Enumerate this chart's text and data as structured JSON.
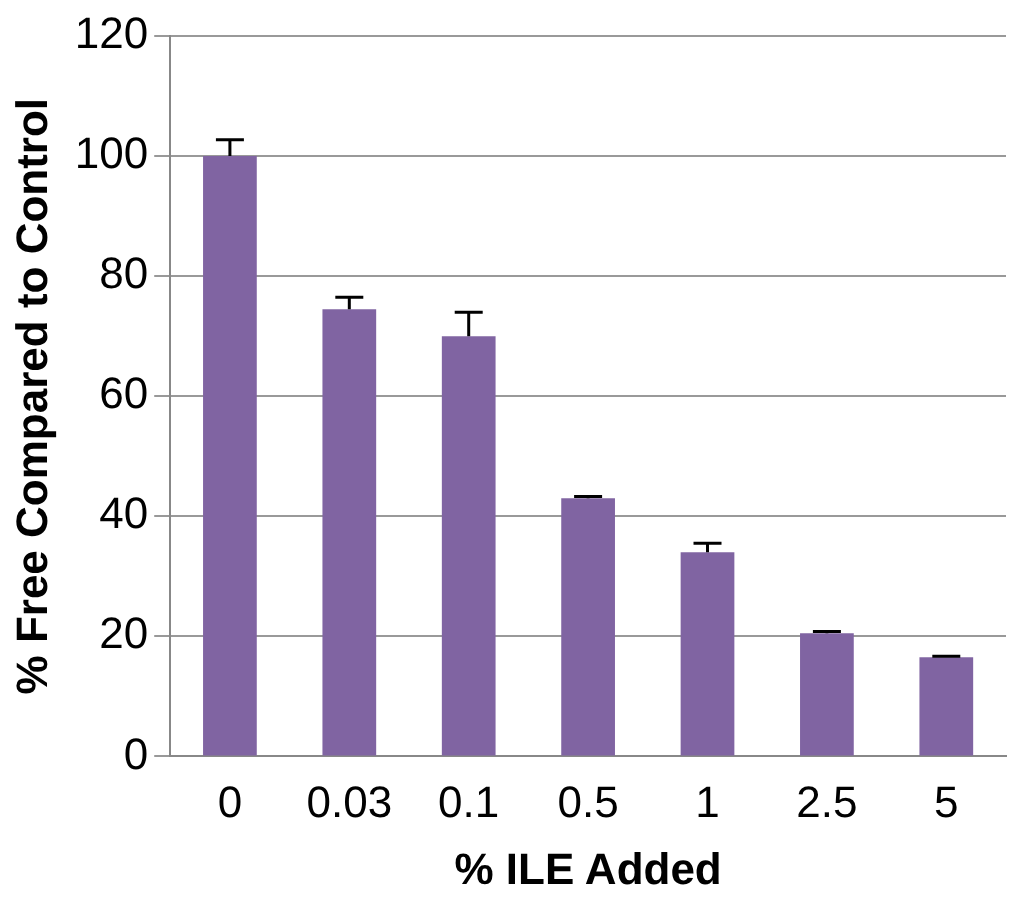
{
  "chart_data": {
    "type": "bar",
    "xlabel": "% ILE Added",
    "ylabel": "% Free Compared to Control",
    "categories": [
      "0",
      "0.03",
      "0.1",
      "0.5",
      "1",
      "2.5",
      "5"
    ],
    "values": [
      100,
      74.5,
      70,
      43,
      34,
      20.5,
      16.5
    ],
    "errors": [
      [
        100,
        102.7
      ],
      [
        74.5,
        76.5
      ],
      [
        70,
        74
      ],
      [
        43,
        43.3
      ],
      [
        34,
        35.5
      ],
      [
        20.5,
        20.8
      ],
      [
        16.5,
        16.7
      ]
    ],
    "color": "#8064a2",
    "ylim": [
      0,
      120
    ],
    "yticks": [
      0,
      20,
      40,
      60,
      80,
      100,
      120
    ],
    "grid": "y",
    "legend": false
  }
}
